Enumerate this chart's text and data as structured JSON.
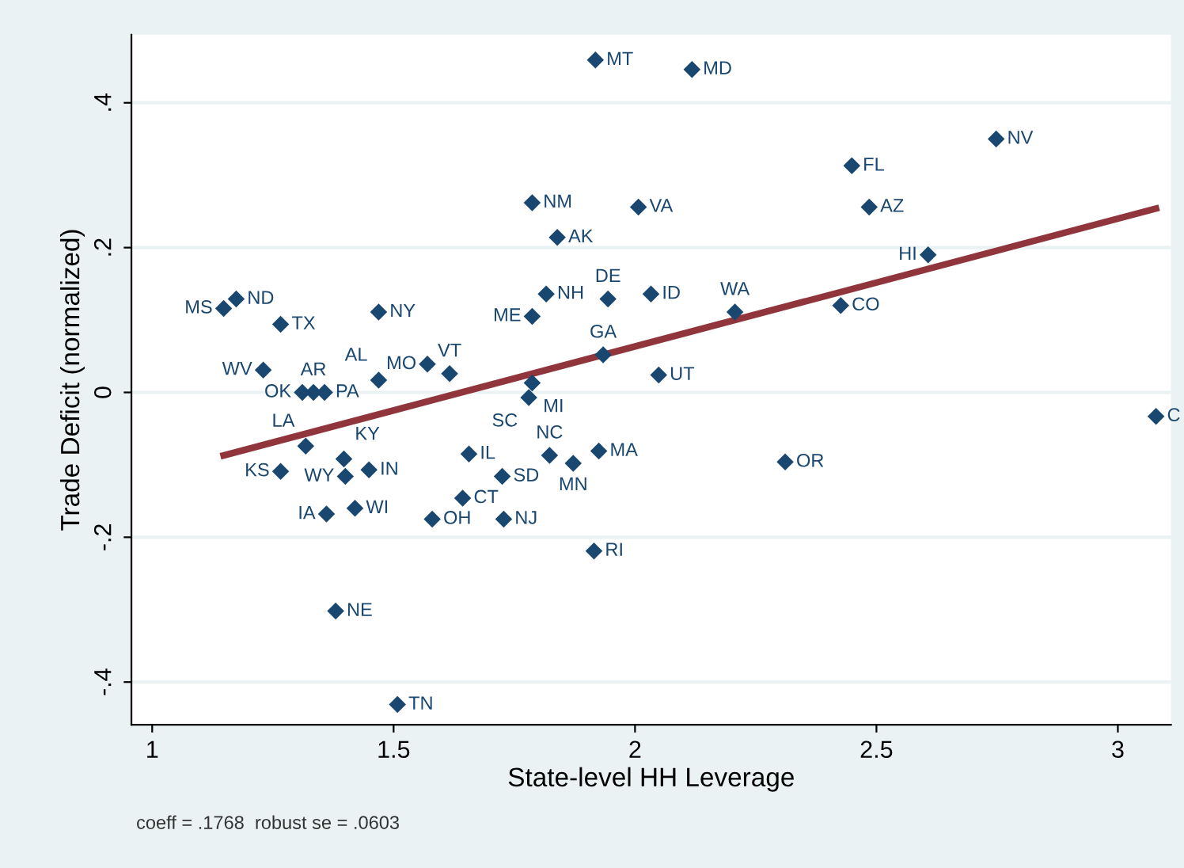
{
  "chart_data": {
    "type": "scatter",
    "xlabel": "State-level HH Leverage",
    "ylabel": "Trade Deficit (normalized)",
    "annotations": [
      "coeff = .1768  robust se = .0603"
    ],
    "xlim": [
      0.957,
      3.11
    ],
    "xticks": [
      1,
      1.5,
      2,
      2.5,
      3
    ],
    "ylim": [
      -0.459,
      0.494
    ],
    "yticks": [
      {
        "value": 0.4,
        "label": ".4"
      },
      {
        "value": 0.2,
        "label": ".2"
      },
      {
        "value": 0,
        "label": "0"
      },
      {
        "value": -0.2,
        "label": "-.2"
      },
      {
        "value": -0.4,
        "label": "-.4"
      }
    ],
    "grid": "y",
    "series": [
      {
        "color": "#1a476f",
        "marker": "diamond",
        "x": [
          1.918,
          2.118,
          2.748,
          2.449,
          2.485,
          1.787,
          2.007,
          1.839,
          2.607,
          1.816,
          1.944,
          2.033,
          1.787,
          2.207,
          2.426,
          1.934,
          2.049,
          1.787,
          1.78,
          3.079,
          1.823,
          1.925,
          1.872,
          2.311,
          1.915,
          1.656,
          1.725,
          1.643,
          1.58,
          1.728,
          1.508,
          1.38,
          1.361,
          1.42,
          1.266,
          1.318,
          1.397,
          1.4,
          1.449,
          1.311,
          1.334,
          1.357,
          1.148,
          1.174,
          1.266,
          1.469,
          1.23,
          1.469,
          1.57,
          1.616
        ],
        "values": [
          0.459,
          0.446,
          0.35,
          0.313,
          0.256,
          0.262,
          0.256,
          0.214,
          0.19,
          0.136,
          0.129,
          0.136,
          0.105,
          0.111,
          0.12,
          0.052,
          0.024,
          0.013,
          -0.007,
          -0.033,
          -0.087,
          -0.081,
          -0.098,
          -0.096,
          -0.219,
          -0.085,
          -0.116,
          -0.146,
          -0.175,
          -0.175,
          -0.431,
          -0.302,
          -0.168,
          -0.16,
          -0.109,
          -0.074,
          -0.092,
          -0.116,
          -0.107,
          0.0,
          0.0,
          0.0,
          0.116,
          0.129,
          0.094,
          0.111,
          0.031,
          0.017,
          0.039,
          0.026
        ],
        "value_labels": [
          "MT",
          "MD",
          "NV",
          "FL",
          "AZ",
          "NM",
          "VA",
          "AK",
          "HI",
          "NH",
          "DE",
          "ID",
          "ME",
          "WA",
          "CO",
          "GA",
          "UT",
          "MI",
          "SC",
          "C",
          "NC",
          "MA",
          "MN",
          "OR",
          "RI",
          "IL",
          "SD",
          "CT",
          "OH",
          "NJ",
          "TN",
          "NE",
          "IA",
          "WI",
          "KS",
          "LA",
          "KY",
          "WY",
          "IN",
          "OK",
          "AR",
          "PA",
          "MS",
          "ND",
          "TX",
          "NY",
          "WV",
          "AL",
          "MO",
          "VT"
        ]
      },
      {
        "type": "line",
        "color": "#90353b",
        "x": [
          1.148,
          3.079
        ],
        "values": [
          -0.087,
          0.254
        ]
      }
    ]
  }
}
